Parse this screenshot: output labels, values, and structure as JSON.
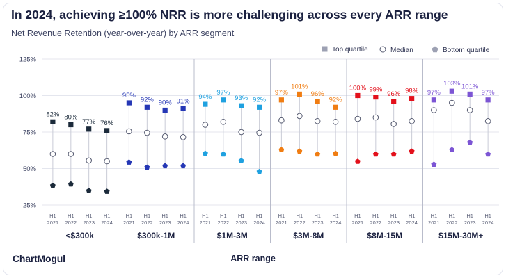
{
  "title": "In 2024, achieving ≥100% NRR is more challenging across every ARR range",
  "subtitle": "Net Revenue Retention (year-over-year) by ARR segment",
  "brand": "ChartMogul",
  "colors": {
    "text": "#1b2140",
    "grid": "#e4e6ee",
    "divider": "#b9bccb",
    "stem": "#c9cbd6",
    "legend_icon": "#9da1b3"
  },
  "chart_data": {
    "type": "scatter",
    "title": "In 2024, achieving ≥100% NRR is more challenging across every ARR range",
    "subtitle": "Net Revenue Retention (year-over-year) by ARR segment",
    "xlabel": "ARR range",
    "ylabel": "",
    "ylim": [
      25,
      125
    ],
    "yticks": [
      "25%",
      "50%",
      "75%",
      "100%",
      "125%"
    ],
    "grid": true,
    "legend_position": "top-right",
    "legend": [
      {
        "name": "Top quartile",
        "marker": "square"
      },
      {
        "name": "Median",
        "marker": "circle"
      },
      {
        "name": "Bottom quartile",
        "marker": "pentagon"
      }
    ],
    "period_labels": [
      [
        "H1",
        "2021"
      ],
      [
        "H1",
        "2022"
      ],
      [
        "H1",
        "2023"
      ],
      [
        "H1",
        "2024"
      ]
    ],
    "segments": [
      {
        "name": "<$300k",
        "color": "#1b2a3a",
        "top": [
          82,
          80,
          77,
          76
        ],
        "top_labels": [
          "82%",
          "80%",
          "77%",
          "76%"
        ],
        "median": [
          60,
          60,
          55.5,
          55
        ],
        "bottom": [
          38.5,
          39.5,
          35,
          34.5
        ]
      },
      {
        "name": "$300k-1M",
        "color": "#2537b5",
        "top": [
          95,
          92,
          90,
          91
        ],
        "top_labels": [
          "95%",
          "92%",
          "90%",
          "91%"
        ],
        "median": [
          75.5,
          74.5,
          72,
          71.5
        ],
        "bottom": [
          54.5,
          51,
          52,
          52
        ]
      },
      {
        "name": "$1M-3M",
        "color": "#1fa1e0",
        "top": [
          94,
          97,
          93,
          92
        ],
        "top_labels": [
          "94%",
          "97%",
          "93%",
          "92%"
        ],
        "median": [
          80,
          82,
          75,
          74.5
        ],
        "bottom": [
          60.5,
          60,
          55.5,
          48
        ]
      },
      {
        "name": "$3M-8M",
        "color": "#f07d12",
        "top": [
          97,
          101,
          96,
          92
        ],
        "top_labels": [
          "97%",
          "101%",
          "96%",
          "92%"
        ],
        "median": [
          83,
          86,
          82.5,
          82
        ],
        "bottom": [
          63,
          62,
          60,
          60.5
        ]
      },
      {
        "name": "$8M-15M",
        "color": "#e3101b",
        "top": [
          100,
          99,
          96,
          98
        ],
        "top_labels": [
          "100%",
          "99%",
          "96%",
          "98%"
        ],
        "median": [
          84,
          85,
          80.5,
          82.5
        ],
        "bottom": [
          55,
          60,
          60,
          62
        ]
      },
      {
        "name": "$15M-30M+",
        "color": "#7c55d4",
        "top": [
          97,
          103,
          101,
          97
        ],
        "top_labels": [
          "97%",
          "103%",
          "101%",
          "97%"
        ],
        "median": [
          90,
          95,
          90,
          82.5
        ],
        "bottom": [
          53,
          63,
          68,
          60
        ]
      }
    ]
  }
}
